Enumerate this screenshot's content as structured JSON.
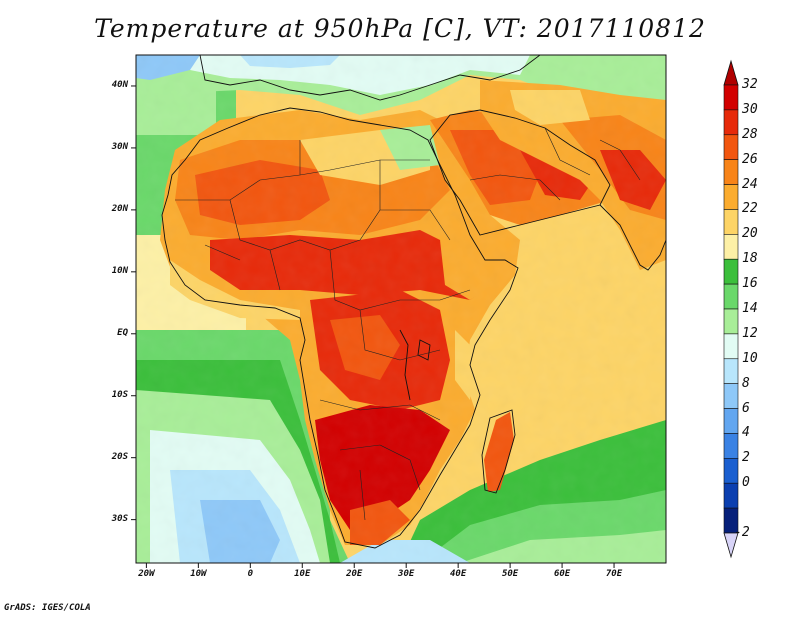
{
  "title": "Temperature at 950hPa [C], VT: 2017110812",
  "credit": "GrADS: IGES/COLA",
  "map": {
    "lon_range": [
      -22,
      80
    ],
    "lat_range": [
      -37,
      45
    ],
    "lat_ticks": [
      {
        "value": 40,
        "label": "40N"
      },
      {
        "value": 30,
        "label": "30N"
      },
      {
        "value": 20,
        "label": "20N"
      },
      {
        "value": 10,
        "label": "10N"
      },
      {
        "value": 0,
        "label": "EQ"
      },
      {
        "value": -10,
        "label": "10S"
      },
      {
        "value": -20,
        "label": "20S"
      },
      {
        "value": -30,
        "label": "30S"
      }
    ],
    "lon_ticks": [
      {
        "value": -20,
        "label": "20W"
      },
      {
        "value": -10,
        "label": "10W"
      },
      {
        "value": 0,
        "label": "0"
      },
      {
        "value": 10,
        "label": "10E"
      },
      {
        "value": 20,
        "label": "20E"
      },
      {
        "value": 30,
        "label": "30E"
      },
      {
        "value": 40,
        "label": "40E"
      },
      {
        "value": 50,
        "label": "50E"
      },
      {
        "value": 60,
        "label": "60E"
      },
      {
        "value": 70,
        "label": "70E"
      }
    ]
  },
  "colorbar": {
    "labels": [
      "32",
      "30",
      "28",
      "26",
      "24",
      "22",
      "20",
      "18",
      "16",
      "14",
      "12",
      "10",
      "8",
      "6",
      "4",
      "2",
      "0",
      "-2"
    ],
    "colors": [
      "#d20000",
      "#e72a0a",
      "#f2560f",
      "#f88418",
      "#fbac2f",
      "#fdd466",
      "#fdf0a6",
      "#3bbf3b",
      "#6ad86a",
      "#a8ee98",
      "#e2fcf4",
      "#b8e6fc",
      "#8ec8f8",
      "#62a6f0",
      "#3a82e4",
      "#1a5fd0",
      "#0b3fb0",
      "#06207a"
    ],
    "under_color": "#d8d4f8",
    "over_color": "#b00000"
  }
}
